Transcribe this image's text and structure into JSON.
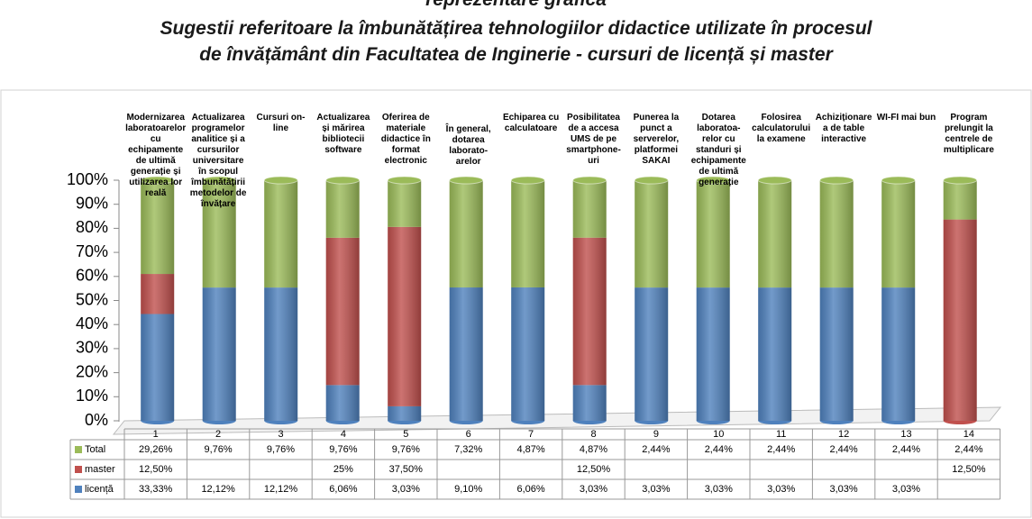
{
  "chart_data": {
    "type": "bar",
    "stacking": "percent",
    "header": "reprezentare grafică",
    "title": [
      "Sugestii referitoare la îmbunătățirea  tehnologiilor didactice utilizate în procesul",
      "de învățământ din Facultatea de Inginerie - cursuri de licență și master"
    ],
    "categories": [
      "1",
      "2",
      "3",
      "4",
      "5",
      "6",
      "7",
      "8",
      "9",
      "10",
      "11",
      "12",
      "13",
      "14"
    ],
    "annotations": [
      "Modernizarea laboratoarelor cu echipamente de ultimă generație și utilizarea lor reală",
      "Actualizarea programelor analitice și a cursurilor universitare în scopul îmbunătățirii metodelor de învățare",
      "Cursuri on-line",
      "Actualizarea și mărirea bibliotecii software",
      "Oferirea de materiale didactice în format electronic",
      "În general, dotarea laborato-arelor",
      "Echiparea cu calculatoare",
      "Posibilitatea de a accesa UMS de pe smartphone-uri",
      "Punerea la punct a serverelor, platformei SAKAI",
      "Dotarea laboratoa-relor cu standuri și echipamente de ultimă generație",
      "Folosirea calculatorului la examene",
      "Achiziționarea de table interactive",
      "WI-FI mai bun",
      "Program prelungit la centrele de multiplicare"
    ],
    "series": [
      {
        "name": "Total",
        "color": "#9bbb59",
        "values": [
          29.26,
          9.76,
          9.76,
          9.76,
          9.76,
          7.32,
          4.87,
          4.87,
          2.44,
          2.44,
          2.44,
          2.44,
          2.44,
          2.44
        ],
        "value_labels": [
          "29,26%",
          "9,76%",
          "9,76%",
          "9,76%",
          "9,76%",
          "7,32%",
          "4,87%",
          "4,87%",
          "2,44%",
          "2,44%",
          "2,44%",
          "2,44%",
          "2,44%",
          "2,44%"
        ]
      },
      {
        "name": "master",
        "color": "#c0504d",
        "values": [
          12.5,
          null,
          null,
          25,
          37.5,
          null,
          null,
          12.5,
          null,
          null,
          null,
          null,
          null,
          12.5
        ],
        "value_labels": [
          "12,50%",
          null,
          null,
          "25%",
          "37,50%",
          null,
          null,
          "12,50%",
          null,
          null,
          null,
          null,
          null,
          "12,50%"
        ]
      },
      {
        "name": "licență",
        "color": "#4f81bd",
        "values": [
          33.33,
          12.12,
          12.12,
          6.06,
          3.03,
          9.1,
          6.06,
          3.03,
          3.03,
          3.03,
          3.03,
          3.03,
          3.03,
          null
        ],
        "value_labels": [
          "33,33%",
          "12,12%",
          "12,12%",
          "6,06%",
          "3,03%",
          "9,10%",
          "6,06%",
          "3,03%",
          "3,03%",
          "3,03%",
          "3,03%",
          "3,03%",
          "3,03%",
          null
        ]
      }
    ],
    "ylim": [
      0,
      100
    ],
    "yticks": [
      {
        "value": 0,
        "label": "0%"
      },
      {
        "value": 10,
        "label": "10%"
      },
      {
        "value": 20,
        "label": "20%"
      },
      {
        "value": 30,
        "label": "30%"
      },
      {
        "value": 40,
        "label": "40%"
      },
      {
        "value": 50,
        "label": "50%"
      },
      {
        "value": 60,
        "label": "60%"
      },
      {
        "value": 70,
        "label": "70%"
      },
      {
        "value": 80,
        "label": "80%"
      },
      {
        "value": 90,
        "label": "90%"
      },
      {
        "value": 100,
        "label": "100%"
      }
    ]
  }
}
